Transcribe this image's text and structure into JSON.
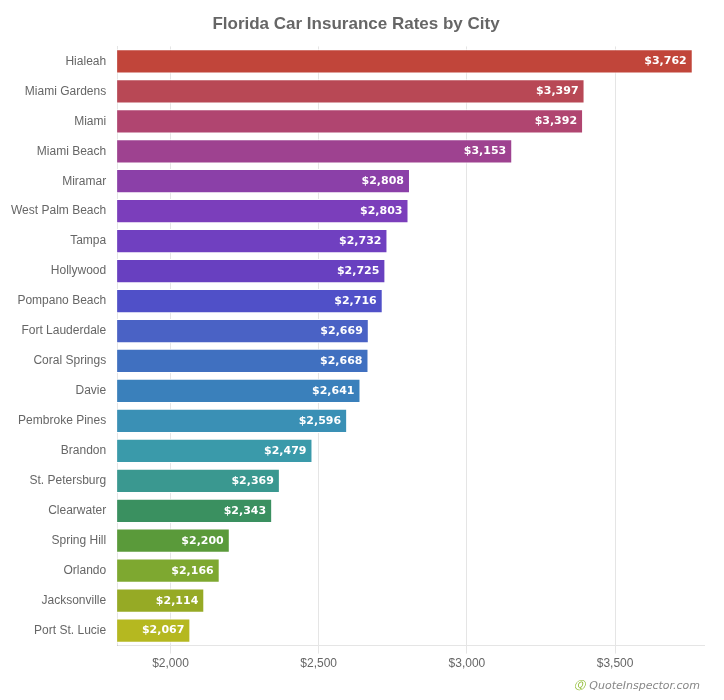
{
  "chart_data": {
    "type": "bar",
    "orientation": "horizontal",
    "title": "Florida Car Insurance Rates by City",
    "categories": [
      "Hialeah",
      "Miami Gardens",
      "Miami",
      "Miami Beach",
      "Miramar",
      "West Palm Beach",
      "Tampa",
      "Hollywood",
      "Pompano Beach",
      "Fort Lauderdale",
      "Coral Springs",
      "Davie",
      "Pembroke Pines",
      "Brandon",
      "St. Petersburg",
      "Clearwater",
      "Spring Hill",
      "Orlando",
      "Jacksonville",
      "Port St. Lucie"
    ],
    "values": [
      3762,
      3397,
      3392,
      3153,
      2808,
      2803,
      2732,
      2725,
      2716,
      2669,
      2668,
      2641,
      2596,
      2479,
      2369,
      2343,
      2200,
      2166,
      2114,
      2067
    ],
    "value_labels": [
      "$3,762",
      "$3,397",
      "$3,392",
      "$3,153",
      "$2,808",
      "$2,803",
      "$2,732",
      "$2,725",
      "$2,716",
      "$2,669",
      "$2,668",
      "$2,641",
      "$2,596",
      "$2,479",
      "$2,369",
      "$2,343",
      "$2,200",
      "$2,166",
      "$2,114",
      "$2,067"
    ],
    "colors": [
      "#C1453A",
      "#B84855",
      "#B04570",
      "#9E4290",
      "#8B40A8",
      "#7B3EBB",
      "#7040C0",
      "#6840C0",
      "#5050C8",
      "#4A62C5",
      "#4070C0",
      "#3A80BB",
      "#3A90B5",
      "#3A9AAA",
      "#3A9890",
      "#3A9060",
      "#5A9A3A",
      "#7EA830",
      "#96AA25",
      "#B5B820"
    ],
    "xlim": [
      1820,
      3800
    ],
    "xticks": [
      {
        "value": 2000,
        "label": "$2,000"
      },
      {
        "value": 2500,
        "label": "$2,500"
      },
      {
        "value": 3000,
        "label": "$3,000"
      },
      {
        "value": 3500,
        "label": "$3,500"
      }
    ],
    "grid": true,
    "data_labels": true,
    "annotations": [
      "Ⓠ",
      "QuoteInspector.com"
    ]
  }
}
